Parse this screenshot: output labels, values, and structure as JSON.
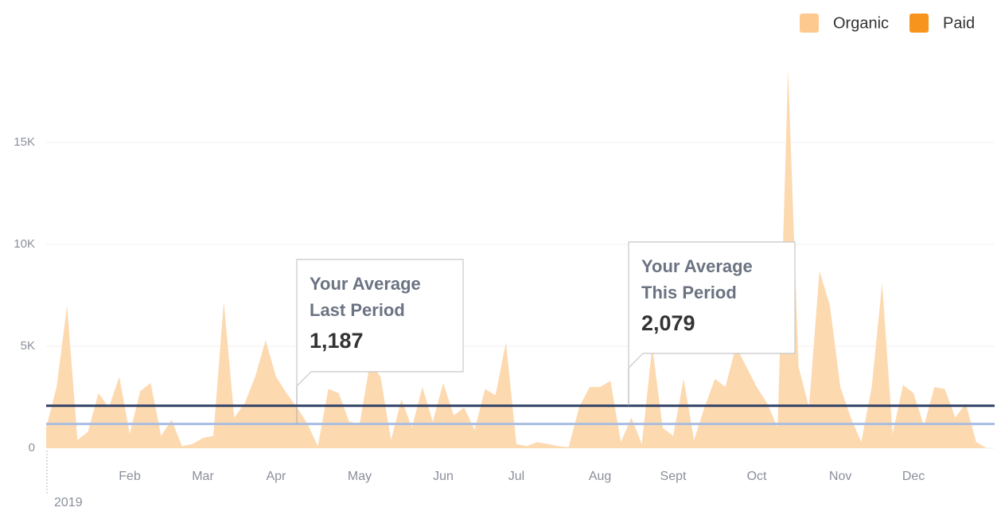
{
  "chart_data": {
    "type": "area",
    "legend": [
      {
        "name": "Organic",
        "color": "#fdc98f"
      },
      {
        "name": "Paid",
        "color": "#f7941d"
      }
    ],
    "categories": [
      null,
      null,
      null,
      null,
      null,
      null,
      null,
      null,
      "Feb",
      null,
      null,
      null,
      null,
      null,
      null,
      "Mar",
      null,
      null,
      null,
      null,
      null,
      null,
      "Apr",
      null,
      null,
      null,
      null,
      null,
      null,
      null,
      "May",
      null,
      null,
      null,
      null,
      null,
      null,
      null,
      "Jun",
      null,
      null,
      null,
      null,
      null,
      null,
      "Jul",
      null,
      null,
      null,
      null,
      null,
      null,
      null,
      "Aug",
      null,
      null,
      null,
      null,
      null,
      null,
      "Sept",
      null,
      null,
      null,
      null,
      null,
      null,
      null,
      "Oct",
      null,
      null,
      null,
      null,
      null,
      null,
      null,
      "Nov",
      null,
      null,
      null,
      null,
      null,
      null,
      "Dec",
      null,
      null,
      null,
      null,
      null,
      null,
      null
    ],
    "series": [
      {
        "name": "Organic",
        "color": "#fdd9b0",
        "values": [
          1000,
          3000,
          7000,
          400,
          800,
          2700,
          2000,
          3500,
          700,
          2800,
          3200,
          600,
          1400,
          100,
          200,
          500,
          600,
          7200,
          1500,
          2200,
          3500,
          5300,
          3500,
          2700,
          2000,
          1200,
          100,
          2900,
          2700,
          1300,
          1200,
          4200,
          3500,
          400,
          2400,
          1000,
          3000,
          1300,
          3200,
          1600,
          2000,
          900,
          2900,
          2600,
          5200,
          200,
          100,
          300,
          200,
          100,
          50,
          2000,
          3000,
          3000,
          3300,
          300,
          1500,
          200,
          5000,
          1000,
          600,
          3400,
          400,
          2000,
          3400,
          3000,
          5000,
          4000,
          3000,
          2200,
          1000,
          18600,
          4000,
          2000,
          8700,
          7000,
          3000,
          1500,
          300,
          3000,
          8100,
          700,
          3100,
          2700,
          1100,
          3000,
          2900,
          1500,
          2200,
          300,
          0
        ]
      }
    ],
    "year_label": "2019",
    "ylim": [
      0,
      20000
    ],
    "yticks": [
      0,
      {
        "value": 5000,
        "label": "5K"
      },
      {
        "value": 10000,
        "label": "10K"
      },
      {
        "value": 15000,
        "label": "15K"
      }
    ],
    "grid": true,
    "averages": [
      {
        "label_lines": [
          "Your Average",
          "Last Period"
        ],
        "value": 1187,
        "value_label": "1,187",
        "color": "#a9bce0"
      },
      {
        "label_lines": [
          "Your Average",
          "This Period"
        ],
        "value": 2079,
        "value_label": "2,079",
        "color": "#2d3f63"
      }
    ]
  }
}
